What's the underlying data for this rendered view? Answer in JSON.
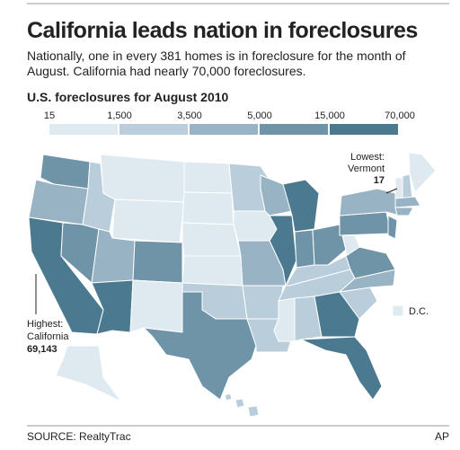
{
  "header": {
    "title": "California leads nation in foreclosures",
    "subtitle": "Nationally, one in every 381 homes is in foreclosure for the month of August. California had nearly 70,000 foreclosures."
  },
  "legend": {
    "title": "U.S. foreclosures for August 2010",
    "breaks": [
      "15",
      "1,500",
      "3,500",
      "5,000",
      "15,000",
      "70,000"
    ],
    "colors": [
      "#dfeaf0",
      "#b9ceda",
      "#98b3c3",
      "#6f93a7",
      "#4b7a90"
    ]
  },
  "callouts": {
    "lowest": {
      "label": "Lowest:",
      "state": "Vermont",
      "value": "17"
    },
    "highest": {
      "label": "Highest:",
      "state": "California",
      "value": "69,143"
    },
    "dc": "D.C."
  },
  "footer": {
    "source": "SOURCE: RealtyTrac",
    "credit": "AP"
  }
}
